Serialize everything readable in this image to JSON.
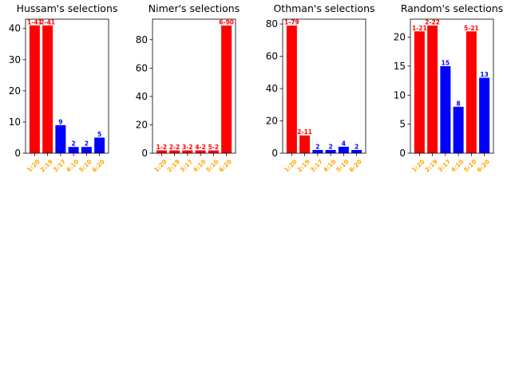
{
  "figure": {
    "colors": {
      "max": "#ff0000",
      "other": "#0000ff",
      "tick_label": "#ffa500",
      "text": "#000000",
      "frame": "#000000"
    }
  },
  "chart_data": [
    {
      "type": "bar",
      "title": "Hussam's selections",
      "categories": [
        "1:20",
        "2:19",
        "3:17",
        "4:10",
        "5:10",
        "6:20"
      ],
      "values": [
        41,
        41,
        9,
        2,
        2,
        5
      ],
      "data_labels": [
        "1-41",
        "2-41",
        "9",
        "2",
        "2",
        "5"
      ],
      "highlight": [
        true,
        true,
        false,
        false,
        false,
        false
      ],
      "ylim": [
        0,
        43
      ],
      "yticks": [
        0,
        10,
        20,
        30,
        40
      ],
      "xlabel": "",
      "ylabel": ""
    },
    {
      "type": "bar",
      "title": "Nimer's selections",
      "categories": [
        "1:20",
        "2:19",
        "3:17",
        "4:10",
        "5:10",
        "6:20"
      ],
      "values": [
        2,
        2,
        2,
        2,
        2,
        90
      ],
      "data_labels": [
        "1-2",
        "2-2",
        "3-2",
        "4-2",
        "5-2",
        "6-90"
      ],
      "highlight": [
        true,
        true,
        true,
        true,
        true,
        true
      ],
      "ylim": [
        0,
        94.5
      ],
      "yticks": [
        0,
        20,
        40,
        60,
        80
      ],
      "xlabel": "",
      "ylabel": ""
    },
    {
      "type": "bar",
      "title": "Othman's selections",
      "categories": [
        "1:20",
        "2:19",
        "3:17",
        "4:10",
        "5:10",
        "6:20"
      ],
      "values": [
        79,
        11,
        2,
        2,
        4,
        2
      ],
      "data_labels": [
        "1-79",
        "2-11",
        "2",
        "2",
        "4",
        "2"
      ],
      "highlight": [
        true,
        true,
        false,
        false,
        false,
        false
      ],
      "ylim": [
        0,
        83
      ],
      "yticks": [
        0,
        20,
        40,
        60,
        80
      ],
      "xlabel": "",
      "ylabel": ""
    },
    {
      "type": "bar",
      "title": "Random's selections",
      "categories": [
        "1:20",
        "2:19",
        "3:17",
        "4:10",
        "5:10",
        "6:20"
      ],
      "values": [
        21,
        22,
        15,
        8,
        21,
        13
      ],
      "data_labels": [
        "1-21",
        "2-22",
        "15",
        "8",
        "5-21",
        "13"
      ],
      "highlight": [
        true,
        true,
        false,
        false,
        true,
        false
      ],
      "ylim": [
        0,
        23.1
      ],
      "yticks": [
        0,
        5,
        10,
        15,
        20
      ],
      "xlabel": "",
      "ylabel": ""
    }
  ]
}
